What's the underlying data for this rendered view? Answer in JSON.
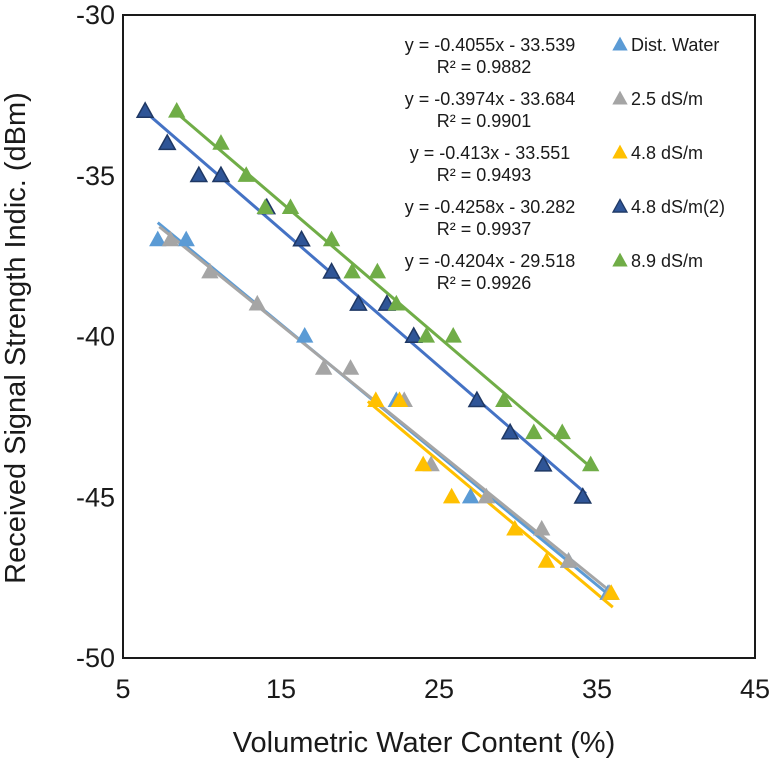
{
  "chart_data": {
    "type": "scatter",
    "title": "",
    "xlabel": "Volumetric Water Content (%)",
    "ylabel": "Received Signal Strength Indic. (dBm)",
    "xlim": [
      5,
      45
    ],
    "ylim": [
      -50,
      -30
    ],
    "x_ticks": [
      "5",
      "15",
      "25",
      "35",
      "45"
    ],
    "y_ticks": [
      "-30",
      "-35",
      "-40",
      "-45",
      "-50"
    ],
    "grid": false,
    "legend_position": "top-right",
    "series": [
      {
        "name": "Dist. Water",
        "color": "#5b9bd5",
        "line_color": "#5b9bd5",
        "equation": "y = -0.4055x - 33.539",
        "r2": "R² = 0.9882",
        "slope": -0.4055,
        "intercept": -33.539,
        "fit_x": [
          7.2,
          36
        ],
        "points": [
          [
            7.2,
            -37
          ],
          [
            9,
            -37
          ],
          [
            16.5,
            -40
          ],
          [
            22.3,
            -42
          ],
          [
            27,
            -45
          ],
          [
            33.2,
            -47
          ],
          [
            35.7,
            -48
          ]
        ]
      },
      {
        "name": "2.5 dS/m",
        "color": "#a5a5a5",
        "line_color": "#a5a5a5",
        "equation": "y = -0.3974x - 33.684",
        "r2": "R² = 0.9901",
        "slope": -0.3974,
        "intercept": -33.684,
        "fit_x": [
          7.3,
          36
        ],
        "points": [
          [
            8,
            -37
          ],
          [
            10.5,
            -38
          ],
          [
            13.5,
            -39
          ],
          [
            17.7,
            -41
          ],
          [
            19.4,
            -41
          ],
          [
            22.8,
            -42
          ],
          [
            24.5,
            -44
          ],
          [
            28,
            -45
          ],
          [
            31.5,
            -46
          ],
          [
            33.2,
            -47
          ],
          [
            35.8,
            -48
          ]
        ]
      },
      {
        "name": "4.8 dS/m",
        "color": "#ffc000",
        "line_color": "#ffc000",
        "equation": "y = -0.413x - 33.551",
        "r2": "R² = 0.9493",
        "slope": -0.413,
        "intercept": -33.551,
        "fit_x": [
          20.5,
          36
        ],
        "points": [
          [
            21,
            -42
          ],
          [
            22.5,
            -42
          ],
          [
            24,
            -44
          ],
          [
            25.8,
            -45
          ],
          [
            29.8,
            -46
          ],
          [
            31.8,
            -47
          ],
          [
            35.9,
            -48
          ]
        ]
      },
      {
        "name": "4.8 dS/m(2)",
        "color": "#2f5597",
        "line_color": "#4472c4",
        "equation": "y = -0.4258x - 30.282",
        "r2": "R² = 0.9937",
        "slope": -0.4258,
        "intercept": -30.282,
        "fit_x": [
          6.3,
          34.3
        ],
        "points": [
          [
            6.4,
            -33
          ],
          [
            7.8,
            -34
          ],
          [
            9.8,
            -35
          ],
          [
            11.2,
            -35
          ],
          [
            14.1,
            -36
          ],
          [
            16.3,
            -37
          ],
          [
            18.2,
            -38
          ],
          [
            19.9,
            -39
          ],
          [
            21.7,
            -39
          ],
          [
            23.4,
            -40
          ],
          [
            27.4,
            -42
          ],
          [
            29.5,
            -43
          ],
          [
            31.6,
            -44
          ],
          [
            34.1,
            -45
          ]
        ]
      },
      {
        "name": "8.9 dS/m",
        "color": "#70ad47",
        "line_color": "#70ad47",
        "equation": "y = -0.4204x - 29.518",
        "r2": "R² = 0.9926",
        "slope": -0.4204,
        "intercept": -29.518,
        "fit_x": [
          8.2,
          34.8
        ],
        "points": [
          [
            8.4,
            -33
          ],
          [
            11.2,
            -34
          ],
          [
            12.8,
            -35
          ],
          [
            14,
            -36
          ],
          [
            15.6,
            -36
          ],
          [
            18.2,
            -37
          ],
          [
            19.5,
            -38
          ],
          [
            21.1,
            -38
          ],
          [
            22.3,
            -39
          ],
          [
            24.2,
            -40
          ],
          [
            25.9,
            -40
          ],
          [
            29.1,
            -42
          ],
          [
            31,
            -43
          ],
          [
            32.8,
            -43
          ],
          [
            34.6,
            -44
          ]
        ]
      }
    ]
  }
}
